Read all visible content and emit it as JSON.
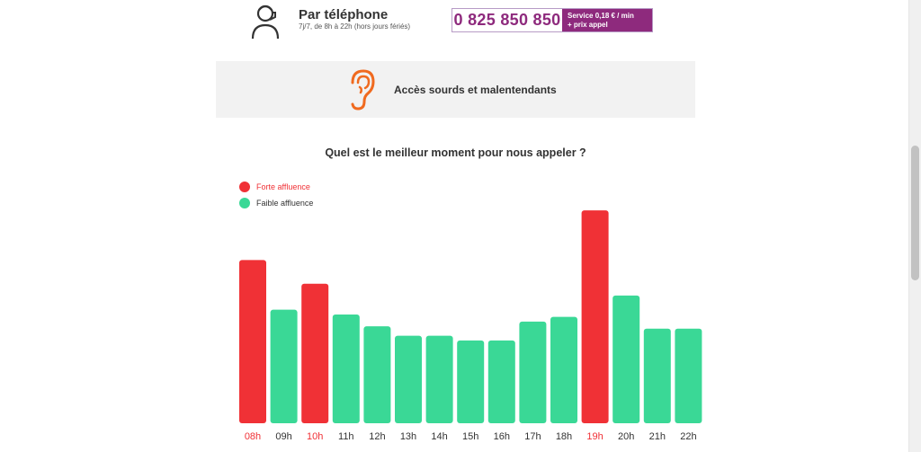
{
  "contact": {
    "title": "Par téléphone",
    "hours": "7j/7, de 8h à 22h (hors jours fériés)",
    "phone_number": "0 825 850 850",
    "price_line1": "Service 0,18 € / min",
    "price_line2": "+ prix appel",
    "icon": "person-headset-icon"
  },
  "accessibility": {
    "label": "Accès sourds et malentendants",
    "icon": "ear-icon"
  },
  "colors": {
    "high": "#f03136",
    "low": "#3ad896",
    "accent": "#8e2a7d",
    "ear": "#f06a1f"
  },
  "chart_data": {
    "type": "bar",
    "title": "Quel est le meilleur moment pour nous appeler ?",
    "legend": [
      {
        "label": "Forte affluence",
        "key": "high"
      },
      {
        "label": "Faible affluence",
        "key": "low"
      }
    ],
    "categories": [
      "08h",
      "09h",
      "10h",
      "11h",
      "12h",
      "13h",
      "14h",
      "15h",
      "16h",
      "17h",
      "18h",
      "19h",
      "20h",
      "21h",
      "22h"
    ],
    "values": [
      69,
      48,
      59,
      46,
      41,
      37,
      37,
      35,
      35,
      43,
      45,
      90,
      54,
      40,
      40
    ],
    "levels": [
      "high",
      "low",
      "high",
      "low",
      "low",
      "low",
      "low",
      "low",
      "low",
      "low",
      "low",
      "high",
      "low",
      "low",
      "low"
    ],
    "ylim": [
      0,
      95
    ],
    "xlabel": "",
    "ylabel": "",
    "grid": false,
    "legend_position": "top-left"
  }
}
